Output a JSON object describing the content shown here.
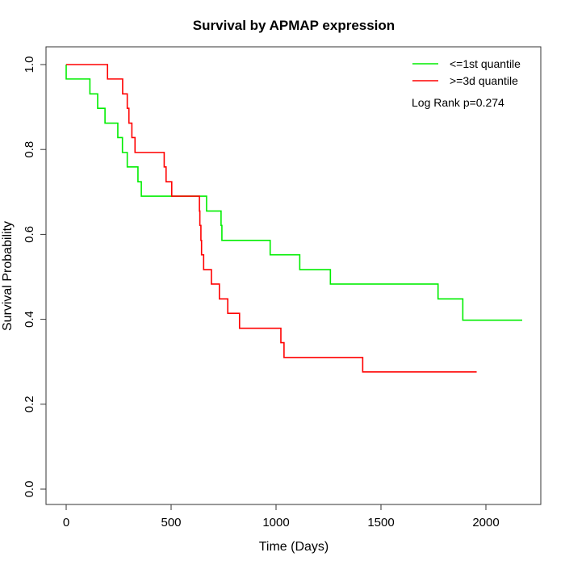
{
  "chart_data": {
    "type": "line",
    "step": true,
    "title": "Survival by APMAP expression",
    "xlabel": "Time (Days)",
    "ylabel": "Survival Probability",
    "xlim": [
      -80,
      2250
    ],
    "ylim": [
      -0.04,
      1.04
    ],
    "xticks": [
      0,
      500,
      1000,
      1500,
      2000
    ],
    "yticks": [
      0.0,
      0.2,
      0.4,
      0.6,
      0.8,
      1.0
    ],
    "ytick_labels": [
      "0.0",
      "0.2",
      "0.4",
      "0.6",
      "0.8",
      "1.0"
    ],
    "grid": false,
    "legend_position": "top-right",
    "annotation": "Log Rank p=0.274",
    "series": [
      {
        "name": "<=1st quantile",
        "color": "#00ee00",
        "x": [
          0,
          0,
          113,
          150,
          185,
          246,
          268,
          291,
          342,
          358,
          669,
          738,
          742,
          972,
          1113,
          1259,
          1772,
          1890,
          2173
        ],
        "y": [
          1.0,
          0.966,
          0.931,
          0.897,
          0.862,
          0.828,
          0.793,
          0.759,
          0.724,
          0.69,
          0.655,
          0.621,
          0.586,
          0.552,
          0.517,
          0.483,
          0.448,
          0.398,
          0.398
        ]
      },
      {
        "name": ">=3d quantile",
        "color": "#ff0000",
        "x": [
          0,
          197,
          269,
          291,
          299,
          313,
          328,
          467,
          476,
          503,
          635,
          637,
          642,
          645,
          655,
          692,
          730,
          770,
          826,
          1023,
          1038,
          1413,
          1956
        ],
        "y": [
          1.0,
          0.966,
          0.931,
          0.897,
          0.862,
          0.828,
          0.793,
          0.759,
          0.724,
          0.69,
          0.655,
          0.621,
          0.586,
          0.552,
          0.517,
          0.483,
          0.448,
          0.414,
          0.379,
          0.345,
          0.31,
          0.276,
          0.276
        ]
      }
    ]
  }
}
